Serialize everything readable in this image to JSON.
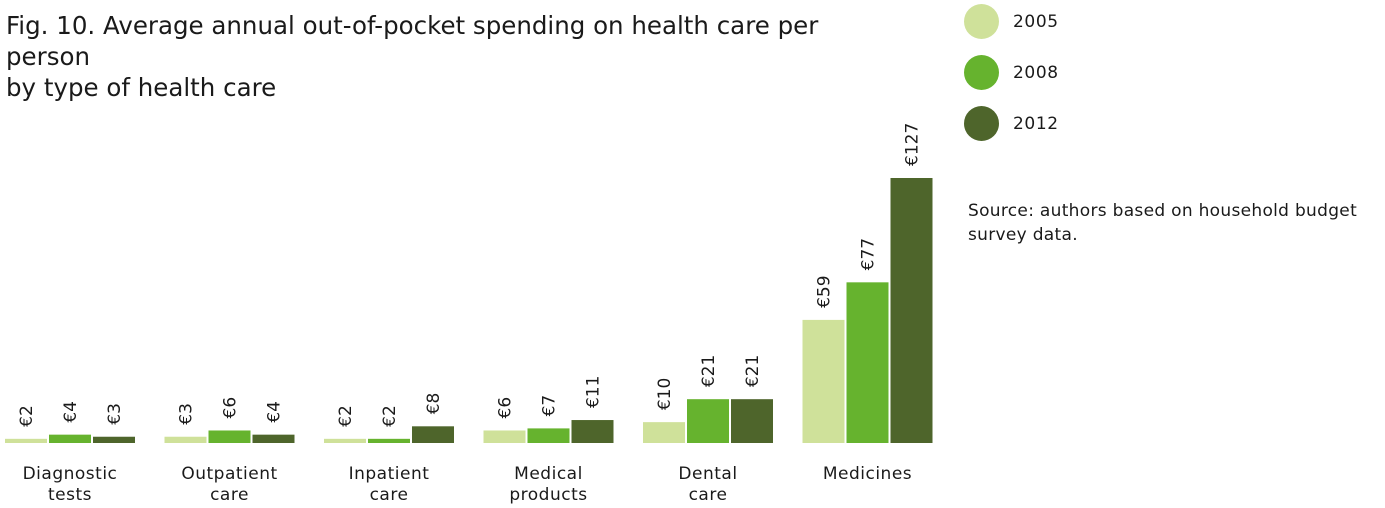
{
  "title": {
    "line1": "Fig. 10. Average annual out-of-pocket spending on health care per person",
    "line2": "by type of health care"
  },
  "legend": [
    {
      "label": "2005",
      "color": "#cfe19a"
    },
    {
      "label": "2008",
      "color": "#66b32e"
    },
    {
      "label": "2012",
      "color": "#4e652b"
    }
  ],
  "source": {
    "line1": "Source: authors based on household budget",
    "line2": "survey data."
  },
  "chart_data": {
    "type": "bar",
    "categories": [
      [
        "Diagnostic",
        "tests"
      ],
      [
        "Outpatient",
        "care"
      ],
      [
        "Inpatient",
        "care"
      ],
      [
        "Medical",
        "products"
      ],
      [
        "Dental",
        "care"
      ],
      [
        "Medicines"
      ]
    ],
    "series": [
      {
        "name": "2005",
        "color": "#cfe19a",
        "values": [
          2,
          3,
          2,
          6,
          10,
          59
        ],
        "labels": [
          "€2",
          "€3",
          "€2",
          "€6",
          "€10",
          "€59"
        ]
      },
      {
        "name": "2008",
        "color": "#66b32e",
        "values": [
          4,
          6,
          2,
          7,
          21,
          77
        ],
        "labels": [
          "€4",
          "€6",
          "€2",
          "€7",
          "€21",
          "€77"
        ]
      },
      {
        "name": "2012",
        "color": "#4e652b",
        "values": [
          3,
          4,
          8,
          11,
          21,
          127
        ],
        "labels": [
          "€3",
          "€4",
          "€8",
          "€11",
          "€21",
          "€127"
        ]
      }
    ],
    "ylim": [
      0,
      127
    ],
    "grid": false,
    "legend_position": "top-right",
    "value_label_orientation": "vertical"
  }
}
